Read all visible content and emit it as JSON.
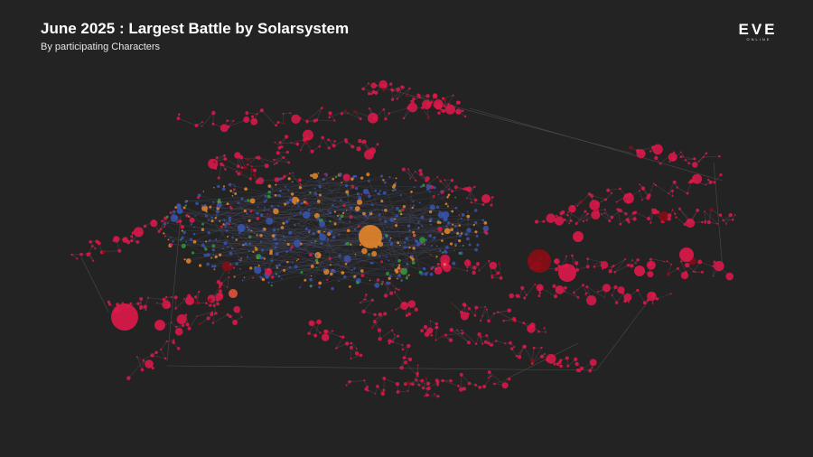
{
  "header": {
    "title": "June 2025 : Largest Battle by Solarsystem",
    "subtitle": "By participating Characters"
  },
  "logo": {
    "text": "EVE",
    "subtext": "ONLINE"
  }
}
